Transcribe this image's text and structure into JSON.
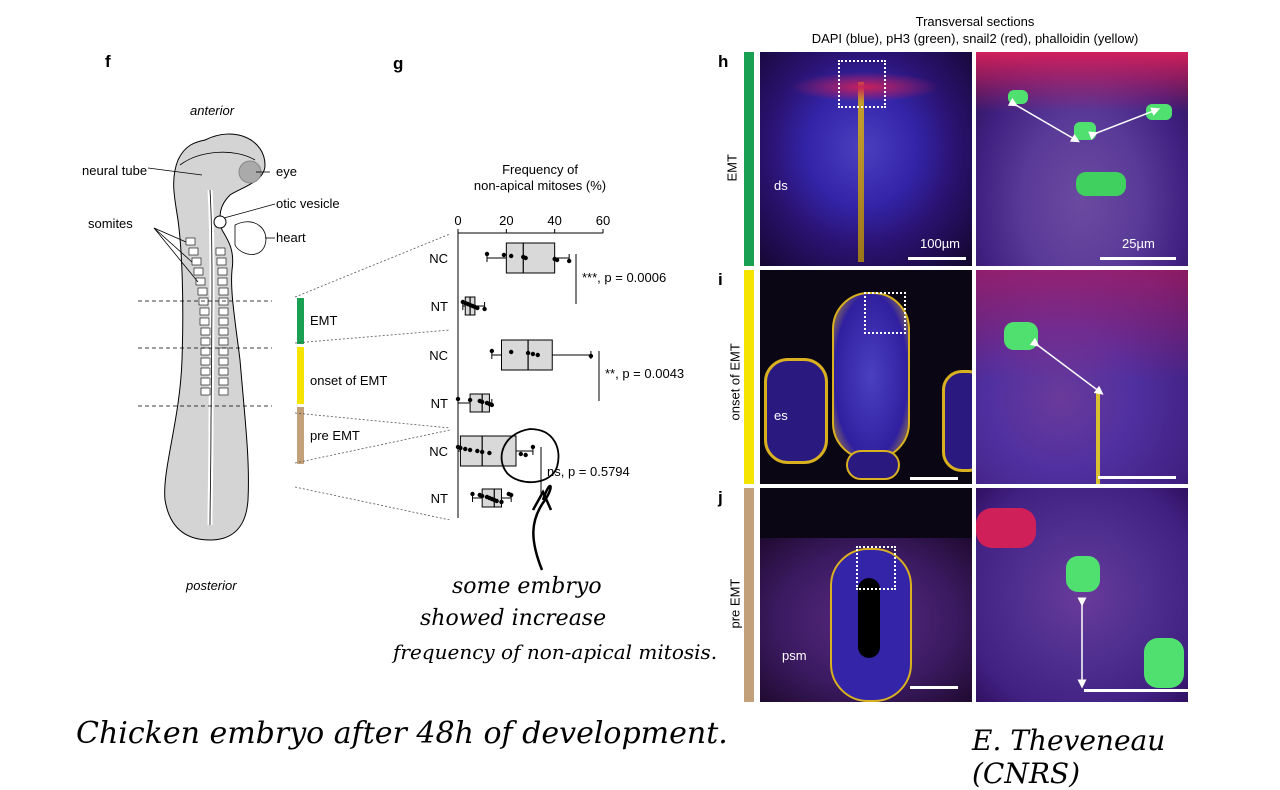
{
  "panel_letters": {
    "f": "f",
    "g": "g",
    "h": "h",
    "i": "i",
    "j": "j"
  },
  "embryo": {
    "anterior": "anterior",
    "posterior": "posterior",
    "labels": {
      "neural_tube": "neural tube",
      "eye": "eye",
      "somites": "somites",
      "otic_vesicle": "otic vesicle",
      "heart": "heart"
    },
    "stage_legend": [
      {
        "label": "EMT",
        "color": "#1aa052"
      },
      {
        "label": "onset of EMT",
        "color": "#f5e400"
      },
      {
        "label": "pre EMT",
        "color": "#c2a07a"
      }
    ]
  },
  "chart_data": {
    "type": "box",
    "title": "Frequency of\nnon-apical mitoses (%)",
    "title_line1": "Frequency of",
    "title_line2": "non-apical mitoses (%)",
    "xlim": [
      0,
      60
    ],
    "xticks": [
      0,
      20,
      40,
      60
    ],
    "orientation": "horizontal",
    "groups": [
      {
        "stage": "EMT",
        "label": "NC",
        "q1": 20,
        "median": 27,
        "q3": 40,
        "min": 12,
        "max": 46,
        "points": [
          12,
          19,
          22,
          27,
          28,
          40,
          41,
          46
        ]
      },
      {
        "stage": "EMT",
        "label": "NT",
        "q1": 3,
        "median": 5,
        "q3": 7,
        "min": 2,
        "max": 11,
        "points": [
          2,
          3,
          4,
          5,
          6,
          7,
          8,
          11
        ]
      },
      {
        "stage": "onset of EMT",
        "label": "NC",
        "q1": 18,
        "median": 29,
        "q3": 39,
        "min": 14,
        "max": 55,
        "points": [
          14,
          22,
          29,
          31,
          33,
          55
        ]
      },
      {
        "stage": "onset of EMT",
        "label": "NT",
        "q1": 5,
        "median": 10,
        "q3": 13,
        "min": 0,
        "max": 14,
        "points": [
          0,
          5,
          9,
          10,
          12,
          13,
          14
        ]
      },
      {
        "stage": "pre EMT",
        "label": "NC",
        "q1": 1,
        "median": 10,
        "q3": 24,
        "min": 0,
        "max": 31,
        "points": [
          0,
          1,
          3,
          5,
          8,
          10,
          13,
          26,
          28,
          31
        ]
      },
      {
        "stage": "pre EMT",
        "label": "NT",
        "q1": 10,
        "median": 15,
        "q3": 18,
        "min": 6,
        "max": 22,
        "points": [
          6,
          9,
          10,
          12,
          13,
          14,
          15,
          16,
          18,
          21,
          22
        ]
      }
    ],
    "stats": [
      {
        "label": "***, p = 0.0006"
      },
      {
        "label": "**, p = 0.0043"
      },
      {
        "label": "ns, p = 0.5794"
      }
    ]
  },
  "annotation": {
    "line1": "some embryo",
    "line2": "showed increase",
    "line3": "frequency of non-apical mitosis."
  },
  "micrographs": {
    "header_line1": "Transversal sections",
    "header_line2": "DAPI (blue), pH3 (green), snail2 (red), phalloidin (yellow)",
    "rows": [
      {
        "letter": "h",
        "stage": "EMT",
        "color": "#1aa052",
        "region": "ds",
        "scale_left": "100µm",
        "scale_right": "25µm"
      },
      {
        "letter": "i",
        "stage": "onset of EMT",
        "color": "#f5e400",
        "region": "es"
      },
      {
        "letter": "j",
        "stage": "pre EMT",
        "color": "#c2a07a",
        "region": "psm"
      }
    ]
  },
  "footer": {
    "caption": "Chicken embryo after  48h of development.",
    "credit": "E. Theveneau (CNRS)"
  }
}
